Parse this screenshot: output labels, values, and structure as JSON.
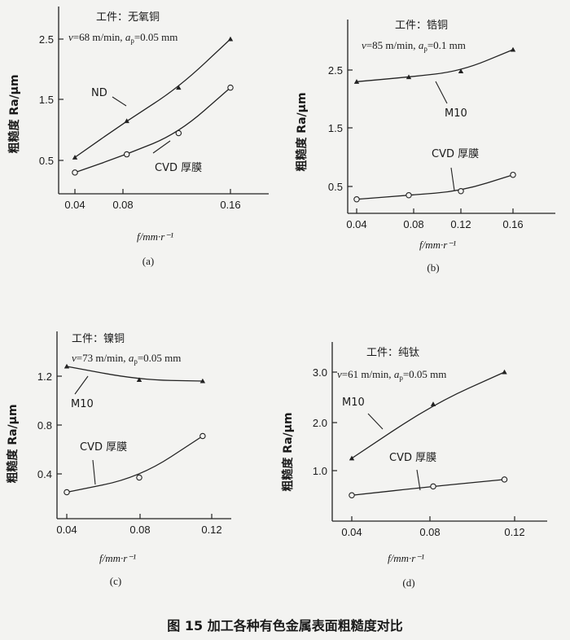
{
  "caption": "图 15   加工各种有色金属表面粗糙度对比",
  "chart_data": [
    {
      "type": "line",
      "panel": "(a)",
      "workpiece": "工件：无氧铜",
      "conditions": "v=68 m/min, ap=0.05 mm",
      "xlabel": "f/mm·r⁻¹",
      "ylabel": "粗糙度 Ra/μm",
      "xticks": [
        "0.04",
        "0.08",
        "0.16"
      ],
      "yticks": [
        "0.5",
        "1.5",
        "2.5"
      ],
      "xlim": [
        0.03,
        0.18
      ],
      "ylim": [
        0,
        2.8
      ],
      "grid": false,
      "series": [
        {
          "name": "ND",
          "marker": "triangle",
          "x": [
            0.04,
            0.08,
            0.12,
            0.16
          ],
          "y": [
            0.55,
            1.15,
            1.7,
            2.5
          ]
        },
        {
          "name": "CVD 厚膜",
          "marker": "circle",
          "x": [
            0.04,
            0.08,
            0.12,
            0.16
          ],
          "y": [
            0.3,
            0.6,
            0.95,
            1.7
          ]
        }
      ]
    },
    {
      "type": "line",
      "panel": "(b)",
      "workpiece": "工件：锆铜",
      "conditions": "v=85 m/min, ap=0.1 mm",
      "xlabel": "f/mm·r⁻¹",
      "ylabel": "粗糙度 Ra/μm",
      "xticks": [
        "0.04",
        "0.08",
        "0.12",
        "0.16"
      ],
      "yticks": [
        "0.5",
        "1.5",
        "2.5"
      ],
      "xlim": [
        0.03,
        0.175
      ],
      "ylim": [
        0,
        3.3
      ],
      "grid": false,
      "series": [
        {
          "name": "M10",
          "marker": "triangle",
          "x": [
            0.04,
            0.08,
            0.12,
            0.16
          ],
          "y": [
            2.3,
            2.38,
            2.48,
            2.85
          ]
        },
        {
          "name": "CVD 厚膜",
          "marker": "circle",
          "x": [
            0.04,
            0.08,
            0.12,
            0.16
          ],
          "y": [
            0.28,
            0.35,
            0.42,
            0.7
          ]
        }
      ]
    },
    {
      "type": "line",
      "panel": "(c)",
      "workpiece": "工件：镍铜",
      "conditions": "v=73 m/min, ap=0.05 mm",
      "xlabel": "f/mm·r⁻¹",
      "ylabel": "粗糙度 Ra/μm",
      "xticks": [
        "0.04",
        "0.08",
        "0.12"
      ],
      "yticks": [
        "0.4",
        "0.8",
        "1.2"
      ],
      "xlim": [
        0.03,
        0.13
      ],
      "ylim": [
        0,
        1.4
      ],
      "grid": false,
      "series": [
        {
          "name": "M10",
          "marker": "triangle",
          "x": [
            0.04,
            0.08,
            0.115
          ],
          "y": [
            1.28,
            1.17,
            1.16
          ]
        },
        {
          "name": "CVD 厚膜",
          "marker": "circle",
          "x": [
            0.04,
            0.08,
            0.115
          ],
          "y": [
            0.25,
            0.37,
            0.71
          ]
        }
      ]
    },
    {
      "type": "line",
      "panel": "(d)",
      "workpiece": "工件：纯钛",
      "conditions": "v=61 m/min, ap=0.05 mm",
      "xlabel": "f/mm·r⁻¹",
      "ylabel": "粗糙度 Ra/μm",
      "xticks": [
        "0.04",
        "0.08",
        "0.12"
      ],
      "yticks": [
        "1.0",
        "2.0",
        "3.0"
      ],
      "xlim": [
        0.03,
        0.13
      ],
      "ylim": [
        0,
        3.25
      ],
      "grid": false,
      "series": [
        {
          "name": "M10",
          "marker": "triangle",
          "x": [
            0.04,
            0.08,
            0.115
          ],
          "y": [
            1.25,
            2.35,
            3.0
          ]
        },
        {
          "name": "CVD 厚膜",
          "marker": "circle",
          "x": [
            0.04,
            0.08,
            0.115
          ],
          "y": [
            0.5,
            0.68,
            0.82
          ]
        }
      ]
    }
  ]
}
